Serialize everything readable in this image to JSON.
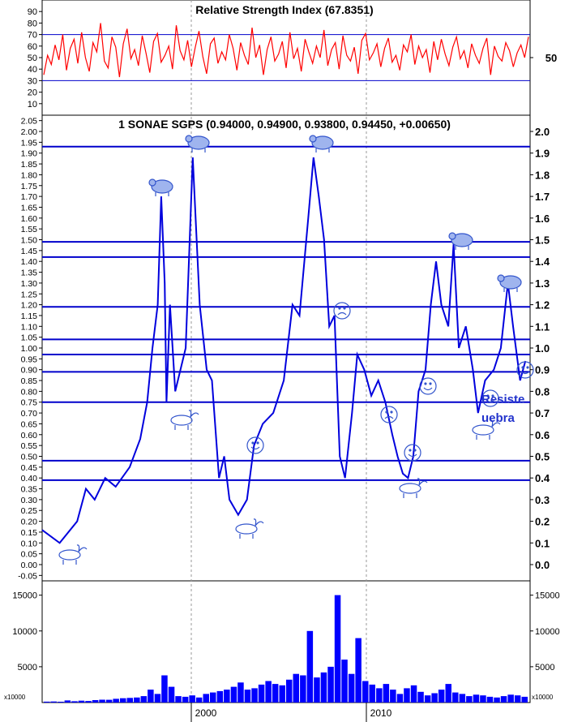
{
  "chart_data": [
    {
      "type": "line",
      "title": "Relative Strength Index (67.8351)",
      "ylim": [
        0,
        100
      ],
      "left_ticks": [
        "10",
        "20",
        "30",
        "40",
        "50",
        "60",
        "70",
        "80",
        "90"
      ],
      "right_ticks": [
        "50"
      ],
      "levels": [
        30,
        70
      ],
      "series": [
        {
          "color": "#ff0000",
          "values": [
            35,
            52,
            44,
            61,
            48,
            70,
            39,
            58,
            66,
            45,
            72,
            50,
            38,
            63,
            55,
            80,
            47,
            41,
            68,
            59,
            33,
            62,
            75,
            49,
            57,
            43,
            69,
            54,
            37,
            64,
            71,
            46,
            52,
            60,
            40,
            78,
            56,
            48,
            65,
            42,
            59,
            73,
            51,
            36,
            62,
            67,
            45,
            55,
            48,
            70,
            58,
            39,
            63,
            52,
            44,
            76,
            50,
            61,
            35,
            57,
            68,
            47,
            53,
            64,
            41,
            72,
            49,
            58,
            38,
            66,
            55,
            45,
            60,
            50,
            74,
            43,
            57,
            63,
            40,
            69,
            52,
            47,
            59,
            36,
            65,
            71,
            48,
            54,
            62,
            42,
            58,
            67,
            46,
            52,
            39,
            61,
            55,
            70,
            44,
            60,
            50,
            57,
            37,
            64,
            48,
            66,
            53,
            43,
            59,
            68,
            49,
            56,
            41,
            62,
            52,
            45,
            58,
            67,
            35,
            60,
            51,
            47,
            63,
            56,
            42,
            54,
            61,
            50,
            68
          ]
        }
      ]
    },
    {
      "type": "line",
      "title": "1 SONAE SGPS (0.94000, 0.94900, 0.93800, 0.94450, +0.00650)",
      "ylim": [
        -0.075,
        2.075
      ],
      "left_ticks": [
        "-0.05",
        "0.00",
        "0.05",
        "0.10",
        "0.15",
        "0.20",
        "0.25",
        "0.30",
        "0.35",
        "0.40",
        "0.45",
        "0.50",
        "0.55",
        "0.60",
        "0.65",
        "0.70",
        "0.75",
        "0.80",
        "0.85",
        "0.90",
        "0.95",
        "1.00",
        "1.05",
        "1.10",
        "1.15",
        "1.20",
        "1.25",
        "1.30",
        "1.35",
        "1.40",
        "1.45",
        "1.50",
        "1.55",
        "1.60",
        "1.65",
        "1.70",
        "1.75",
        "1.80",
        "1.85",
        "1.90",
        "1.95",
        "2.00",
        "2.05"
      ],
      "right_ticks": [
        "0.0",
        "0.1",
        "0.2",
        "0.3",
        "0.4",
        "0.5",
        "0.6",
        "0.7",
        "0.8",
        "0.9",
        "1.0",
        "1.1",
        "1.2",
        "1.3",
        "1.4",
        "1.5",
        "1.6",
        "1.7",
        "1.8",
        "1.9",
        "2.0"
      ],
      "x_ticks": [
        "2000",
        "2010"
      ],
      "horizontal_lines": [
        1.93,
        1.49,
        1.42,
        1.19,
        1.04,
        0.97,
        0.89,
        0.75,
        0.48,
        0.39
      ],
      "overlay_text": [
        "Resiste",
        "uebra"
      ],
      "series": [
        {
          "color": "#0000dd",
          "points": [
            [
              1991.0,
              0.16
            ],
            [
              1992.0,
              0.1
            ],
            [
              1993.0,
              0.2
            ],
            [
              1993.5,
              0.35
            ],
            [
              1994.0,
              0.3
            ],
            [
              1994.6,
              0.4
            ],
            [
              1995.2,
              0.36
            ],
            [
              1996.0,
              0.45
            ],
            [
              1996.6,
              0.58
            ],
            [
              1997.0,
              0.75
            ],
            [
              1997.3,
              1.0
            ],
            [
              1997.6,
              1.2
            ],
            [
              1997.8,
              1.7
            ],
            [
              1998.0,
              1.3
            ],
            [
              1998.1,
              0.75
            ],
            [
              1998.3,
              1.2
            ],
            [
              1998.6,
              0.8
            ],
            [
              1999.2,
              1.0
            ],
            [
              1999.6,
              1.88
            ],
            [
              2000.0,
              1.2
            ],
            [
              2000.4,
              0.9
            ],
            [
              2000.7,
              0.85
            ],
            [
              2001.1,
              0.4
            ],
            [
              2001.4,
              0.5
            ],
            [
              2001.7,
              0.3
            ],
            [
              2002.2,
              0.23
            ],
            [
              2002.7,
              0.3
            ],
            [
              2003.1,
              0.55
            ],
            [
              2003.6,
              0.65
            ],
            [
              2004.2,
              0.7
            ],
            [
              2004.8,
              0.85
            ],
            [
              2005.3,
              1.2
            ],
            [
              2005.7,
              1.15
            ],
            [
              2006.2,
              1.6
            ],
            [
              2006.5,
              1.88
            ],
            [
              2006.8,
              1.7
            ],
            [
              2007.1,
              1.5
            ],
            [
              2007.4,
              1.1
            ],
            [
              2007.7,
              1.15
            ],
            [
              2008.0,
              0.5
            ],
            [
              2008.3,
              0.4
            ],
            [
              2008.7,
              0.7
            ],
            [
              2009.0,
              0.97
            ],
            [
              2009.4,
              0.9
            ],
            [
              2009.8,
              0.78
            ],
            [
              2010.2,
              0.85
            ],
            [
              2010.6,
              0.75
            ],
            [
              2011.0,
              0.6
            ],
            [
              2011.3,
              0.5
            ],
            [
              2011.6,
              0.42
            ],
            [
              2011.9,
              0.4
            ],
            [
              2012.2,
              0.5
            ],
            [
              2012.5,
              0.8
            ],
            [
              2012.9,
              0.9
            ],
            [
              2013.2,
              1.2
            ],
            [
              2013.5,
              1.4
            ],
            [
              2013.8,
              1.2
            ],
            [
              2014.2,
              1.1
            ],
            [
              2014.5,
              1.48
            ],
            [
              2014.8,
              1.0
            ],
            [
              2015.2,
              1.1
            ],
            [
              2015.6,
              0.9
            ],
            [
              2015.9,
              0.7
            ],
            [
              2016.3,
              0.85
            ],
            [
              2016.8,
              0.9
            ],
            [
              2017.2,
              1.0
            ],
            [
              2017.6,
              1.3
            ],
            [
              2017.9,
              1.1
            ],
            [
              2018.3,
              0.85
            ],
            [
              2018.6,
              0.94
            ]
          ]
        }
      ]
    },
    {
      "type": "bar",
      "ylim": [
        0,
        17000
      ],
      "left_ticks": [
        "5000",
        "10000",
        "15000"
      ],
      "right_ticks": [
        "5000",
        "10000",
        "15000"
      ],
      "unit": "x10000",
      "series": [
        {
          "color": "#0000ff",
          "values": [
            120,
            150,
            110,
            300,
            180,
            260,
            220,
            340,
            400,
            380,
            520,
            600,
            650,
            700,
            900,
            1800,
            1200,
            3800,
            2200,
            900,
            800,
            1000,
            700,
            1200,
            1400,
            1600,
            1800,
            2200,
            2800,
            1800,
            2000,
            2500,
            3000,
            2600,
            2400,
            3200,
            4000,
            3800,
            10000,
            3500,
            4200,
            5000,
            15000,
            6000,
            4000,
            9000,
            3000,
            2500,
            2000,
            2600,
            1800,
            1200,
            2000,
            2400,
            1500,
            1000,
            1300,
            1800,
            2600,
            1400,
            1200,
            900,
            1100,
            1000,
            800,
            700,
            900,
            1100,
            1000,
            800
          ]
        }
      ]
    }
  ]
}
